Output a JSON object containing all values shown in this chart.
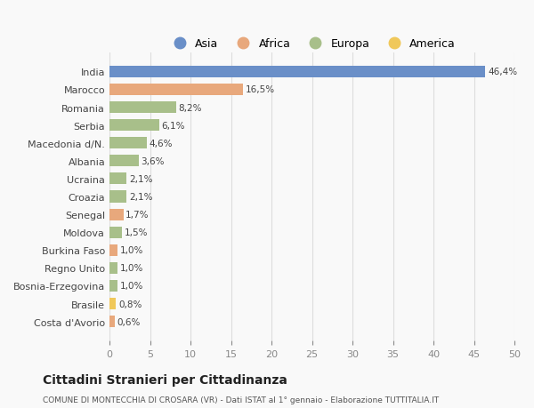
{
  "countries": [
    "India",
    "Marocco",
    "Romania",
    "Serbia",
    "Macedonia d/N.",
    "Albania",
    "Ucraina",
    "Croazia",
    "Senegal",
    "Moldova",
    "Burkina Faso",
    "Regno Unito",
    "Bosnia-Erzegovina",
    "Brasile",
    "Costa d'Avorio"
  ],
  "values": [
    46.4,
    16.5,
    8.2,
    6.1,
    4.6,
    3.6,
    2.1,
    2.1,
    1.7,
    1.5,
    1.0,
    1.0,
    1.0,
    0.8,
    0.6
  ],
  "labels": [
    "46,4%",
    "16,5%",
    "8,2%",
    "6,1%",
    "4,6%",
    "3,6%",
    "2,1%",
    "2,1%",
    "1,7%",
    "1,5%",
    "1,0%",
    "1,0%",
    "1,0%",
    "0,8%",
    "0,6%"
  ],
  "continents": [
    "Asia",
    "Africa",
    "Europa",
    "Europa",
    "Europa",
    "Europa",
    "Europa",
    "Europa",
    "Africa",
    "Europa",
    "Africa",
    "Europa",
    "Europa",
    "America",
    "Africa"
  ],
  "colors": {
    "Asia": "#6a8fc8",
    "Africa": "#e8a87c",
    "Europa": "#a8bf8a",
    "America": "#f0c85a"
  },
  "legend_order": [
    "Asia",
    "Africa",
    "Europa",
    "America"
  ],
  "xlim": [
    0,
    50
  ],
  "xticks": [
    0,
    5,
    10,
    15,
    20,
    25,
    30,
    35,
    40,
    45,
    50
  ],
  "title": "Cittadini Stranieri per Cittadinanza",
  "subtitle": "COMUNE DI MONTECCHIA DI CROSARA (VR) - Dati ISTAT al 1° gennaio - Elaborazione TUTTITALIA.IT",
  "background_color": "#f9f9f9",
  "bar_height": 0.65
}
